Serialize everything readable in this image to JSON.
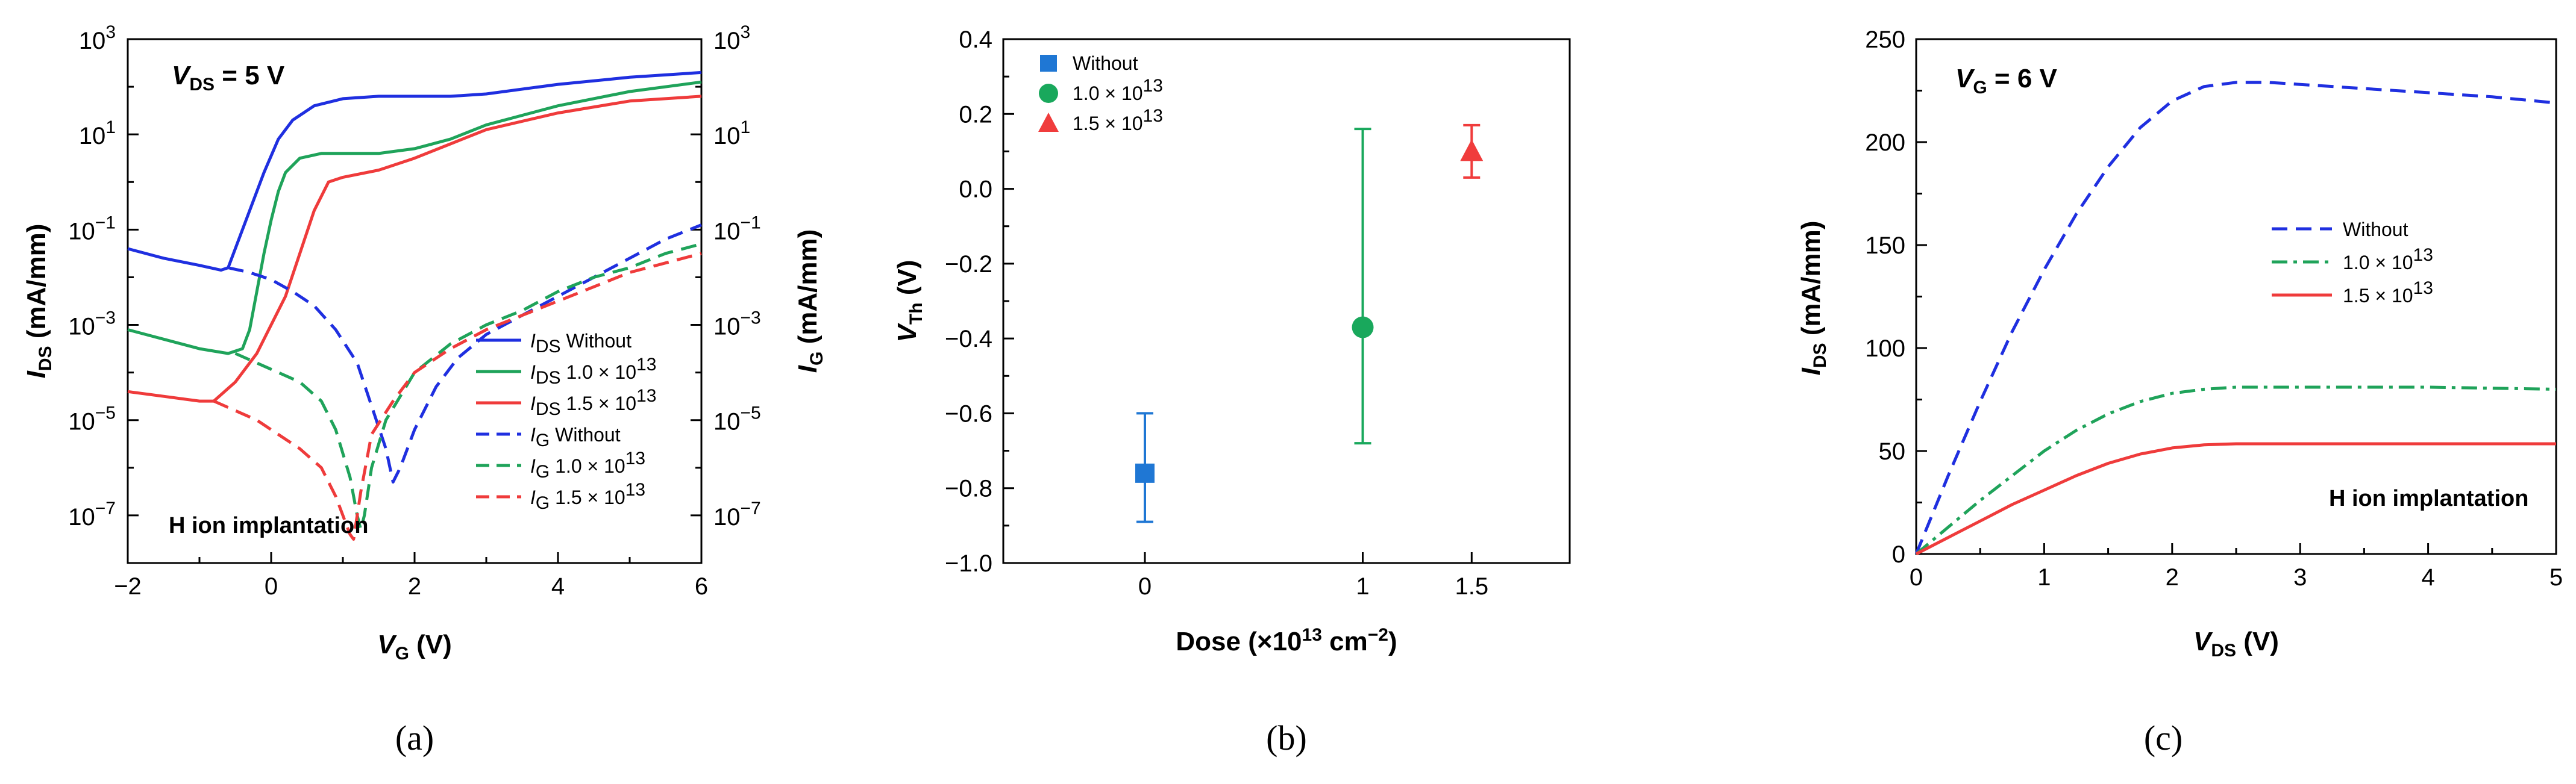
{
  "colors": {
    "blue": "#1f2fe0",
    "green": "#1fa35a",
    "red": "#ef3b3b",
    "scatter_blue": "#1f77d4",
    "scatter_green": "#19a85c",
    "scatter_red": "#f03c3c"
  },
  "chart_data": [
    {
      "id": "a",
      "type": "line",
      "panel_label": "(a)",
      "xlabel_main": "V",
      "xlabel_sub": "G",
      "xlabel_unit": " (V)",
      "ylabel_left_main": "I",
      "ylabel_left_sub": "DS",
      "ylabel_left_unit": " (mA/mm)",
      "ylabel_right_main": "I",
      "ylabel_right_sub": "G",
      "ylabel_right_unit": " (mA/mm)",
      "xlim": [
        -2,
        6
      ],
      "ylim_log10": [
        -8,
        3
      ],
      "x_ticks": [
        -2,
        0,
        2,
        4,
        6
      ],
      "x_tick_labels": [
        "−2",
        "0",
        "2",
        "4",
        "6"
      ],
      "y_ticks_log10": [
        3,
        1,
        -1,
        -3,
        -5,
        -7
      ],
      "y_tick_mantissa": "10",
      "y_tick_exponents": [
        "3",
        "1",
        "−1",
        "−3",
        "−5",
        "−7"
      ],
      "annotation_top_main": "V",
      "annotation_top_sub": "DS",
      "annotation_top_rest": " = 5 V",
      "annotation_bottom": "H ion implantation",
      "legend": [
        {
          "qty": "I",
          "qty_sub": "DS",
          "label": "Without",
          "dose": "",
          "color": "blue",
          "dashed": false
        },
        {
          "qty": "I",
          "qty_sub": "DS",
          "label": "1.0 × 10",
          "dose": "13",
          "color": "green",
          "dashed": false
        },
        {
          "qty": "I",
          "qty_sub": "DS",
          "label": "1.5 × 10",
          "dose": "13",
          "color": "red",
          "dashed": false
        },
        {
          "qty": "I",
          "qty_sub": "G",
          "label": "Without",
          "dose": "",
          "color": "blue",
          "dashed": true
        },
        {
          "qty": "I",
          "qty_sub": "G",
          "label": "1.0 × 10",
          "dose": "13",
          "color": "green",
          "dashed": true
        },
        {
          "qty": "I",
          "qty_sub": "G",
          "label": "1.5 × 10",
          "dose": "13",
          "color": "red",
          "dashed": true
        }
      ],
      "series": [
        {
          "name": "IDS Without",
          "color": "blue",
          "dashed": false,
          "x": [
            -2,
            -1.5,
            -1,
            -0.7,
            -0.6,
            -0.5,
            -0.3,
            -0.1,
            0.1,
            0.3,
            0.6,
            1.0,
            1.5,
            2.0,
            2.5,
            3.0,
            4.0,
            5.0,
            6.0
          ],
          "log10y": [
            -1.4,
            -1.6,
            -1.75,
            -1.85,
            -1.8,
            -1.4,
            -0.6,
            0.2,
            0.9,
            1.3,
            1.6,
            1.75,
            1.8,
            1.8,
            1.8,
            1.85,
            2.05,
            2.2,
            2.3
          ]
        },
        {
          "name": "IDS 1.0x10^13",
          "color": "green",
          "dashed": false,
          "x": [
            -2,
            -1.5,
            -1,
            -0.6,
            -0.4,
            -0.3,
            -0.2,
            -0.1,
            0.0,
            0.1,
            0.2,
            0.4,
            0.7,
            1.0,
            1.5,
            2.0,
            2.5,
            3.0,
            4.0,
            5.0,
            6.0
          ],
          "log10y": [
            -3.1,
            -3.3,
            -3.5,
            -3.6,
            -3.5,
            -3.1,
            -2.3,
            -1.5,
            -0.8,
            -0.2,
            0.2,
            0.5,
            0.6,
            0.6,
            0.6,
            0.7,
            0.9,
            1.2,
            1.6,
            1.9,
            2.1
          ]
        },
        {
          "name": "IDS 1.5x10^13",
          "color": "red",
          "dashed": false,
          "x": [
            -2,
            -1.5,
            -1,
            -0.8,
            -0.5,
            -0.2,
            0.0,
            0.2,
            0.4,
            0.6,
            0.8,
            1.0,
            1.5,
            2.0,
            2.5,
            3.0,
            4.0,
            5.0,
            6.0
          ],
          "log10y": [
            -4.4,
            -4.5,
            -4.6,
            -4.6,
            -4.2,
            -3.6,
            -3.0,
            -2.4,
            -1.5,
            -0.6,
            0.0,
            0.1,
            0.25,
            0.5,
            0.8,
            1.1,
            1.45,
            1.7,
            1.8
          ]
        },
        {
          "name": "IG Without",
          "color": "blue",
          "dashed": true,
          "x": [
            -0.6,
            -0.3,
            0.0,
            0.3,
            0.6,
            0.9,
            1.2,
            1.4,
            1.6,
            1.7,
            1.8,
            2.0,
            2.3,
            2.6,
            3.0,
            3.5,
            4.0,
            4.5,
            5.0,
            5.5,
            6.0
          ],
          "log10y": [
            -1.8,
            -1.9,
            -2.05,
            -2.3,
            -2.6,
            -3.1,
            -3.8,
            -4.7,
            -5.6,
            -6.3,
            -6.0,
            -5.2,
            -4.3,
            -3.7,
            -3.2,
            -2.8,
            -2.4,
            -2.0,
            -1.6,
            -1.2,
            -0.9
          ]
        },
        {
          "name": "IG 1.0x10^13",
          "color": "green",
          "dashed": true,
          "x": [
            -0.5,
            -0.2,
            0.1,
            0.4,
            0.7,
            0.9,
            1.1,
            1.2,
            1.25,
            1.3,
            1.4,
            1.6,
            2.0,
            2.5,
            3.0,
            3.5,
            4.0,
            4.5,
            5.0,
            5.5,
            6.0
          ],
          "log10y": [
            -3.6,
            -3.8,
            -4.0,
            -4.2,
            -4.6,
            -5.2,
            -6.2,
            -7.0,
            -7.3,
            -7.0,
            -6.0,
            -5.0,
            -4.0,
            -3.4,
            -3.0,
            -2.7,
            -2.3,
            -2.0,
            -1.8,
            -1.5,
            -1.3
          ]
        },
        {
          "name": "IG 1.5x10^13",
          "color": "red",
          "dashed": true,
          "x": [
            -0.8,
            -0.5,
            -0.2,
            0.1,
            0.4,
            0.7,
            0.9,
            1.0,
            1.1,
            1.15,
            1.25,
            1.4,
            1.7,
            2.0,
            2.5,
            3.0,
            3.5,
            4.0,
            4.5,
            5.0,
            5.5,
            6.0
          ],
          "log10y": [
            -4.6,
            -4.8,
            -5.0,
            -5.3,
            -5.6,
            -6.0,
            -6.6,
            -7.0,
            -7.4,
            -7.5,
            -6.5,
            -5.3,
            -4.6,
            -4.0,
            -3.5,
            -3.1,
            -2.8,
            -2.5,
            -2.2,
            -1.9,
            -1.7,
            -1.5
          ]
        }
      ]
    },
    {
      "id": "b",
      "type": "scatter",
      "panel_label": "(b)",
      "xlabel": "Dose (×10",
      "xlabel_sup": "13",
      "xlabel_rest": " cm",
      "xlabel_sup2": "−2",
      "xlabel_end": ")",
      "ylabel_main": "V",
      "ylabel_sub": "Th",
      "ylabel_unit": " (V)",
      "xlim": [
        -0.65,
        1.95
      ],
      "ylim": [
        -1.0,
        0.4
      ],
      "x_ticks": [
        0,
        1,
        1.5
      ],
      "x_tick_labels": [
        "0",
        "1",
        "1.5"
      ],
      "y_ticks": [
        0.4,
        0.2,
        0.0,
        -0.2,
        -0.4,
        -0.6,
        -0.8,
        -1.0
      ],
      "y_tick_labels": [
        "0.4",
        "0.2",
        "0.0",
        "−0.2",
        "−0.4",
        "−0.6",
        "−0.8",
        "−1.0"
      ],
      "legend": [
        {
          "label": "Without",
          "sup": "",
          "marker": "square",
          "color": "scatter_blue"
        },
        {
          "label": "1.0 × 10",
          "sup": "13",
          "marker": "circle",
          "color": "scatter_green"
        },
        {
          "label": "1.5 × 10",
          "sup": "13",
          "marker": "triangle",
          "color": "scatter_red"
        }
      ],
      "points": [
        {
          "x": 0,
          "y": -0.76,
          "err_low": -0.89,
          "err_high": -0.6,
          "marker": "square",
          "color": "scatter_blue"
        },
        {
          "x": 1,
          "y": -0.37,
          "err_low": -0.68,
          "err_high": 0.16,
          "marker": "circle",
          "color": "scatter_green"
        },
        {
          "x": 1.5,
          "y": 0.1,
          "err_low": 0.03,
          "err_high": 0.17,
          "marker": "triangle",
          "color": "scatter_red"
        }
      ]
    },
    {
      "id": "c",
      "type": "line",
      "panel_label": "(c)",
      "xlabel_main": "V",
      "xlabel_sub": "DS",
      "xlabel_unit": " (V)",
      "ylabel_main": "I",
      "ylabel_sub": "DS",
      "ylabel_unit": " (mA/mm)",
      "xlim": [
        0,
        5
      ],
      "ylim": [
        0,
        250
      ],
      "x_ticks": [
        0,
        1,
        2,
        3,
        4,
        5
      ],
      "x_tick_labels": [
        "0",
        "1",
        "2",
        "3",
        "4",
        "5"
      ],
      "y_ticks": [
        0,
        50,
        100,
        150,
        200,
        250
      ],
      "y_tick_labels": [
        "0",
        "50",
        "100",
        "150",
        "200",
        "250"
      ],
      "annotation_top_main": "V",
      "annotation_top_sub": "G",
      "annotation_top_rest": " = 6 V",
      "annotation_bottom": "H ion implantation",
      "legend": [
        {
          "label": "Without",
          "sup": "",
          "color": "blue",
          "style": "dash"
        },
        {
          "label": "1.0 × 10",
          "sup": "13",
          "color": "green",
          "style": "dashdot"
        },
        {
          "label": "1.5 × 10",
          "sup": "13",
          "color": "red",
          "style": "solid"
        }
      ],
      "series": [
        {
          "name": "Without",
          "color": "blue",
          "style": "dash",
          "x": [
            0,
            0.25,
            0.5,
            0.75,
            1.0,
            1.25,
            1.5,
            1.75,
            2.0,
            2.25,
            2.5,
            2.75,
            3.0,
            3.5,
            4.0,
            4.5,
            5.0
          ],
          "y": [
            0,
            38,
            74,
            108,
            138,
            165,
            188,
            207,
            220,
            227,
            229,
            229,
            228,
            226,
            224,
            222,
            219
          ]
        },
        {
          "name": "1.0x10^13",
          "color": "green",
          "style": "dashdot",
          "x": [
            0,
            0.25,
            0.5,
            0.75,
            1.0,
            1.25,
            1.5,
            1.75,
            2.0,
            2.25,
            2.5,
            3.0,
            3.5,
            4.0,
            4.5,
            5.0
          ],
          "y": [
            0,
            13,
            26,
            38,
            50,
            60,
            68,
            74,
            78,
            80,
            81,
            81,
            81,
            81,
            80.5,
            80
          ]
        },
        {
          "name": "1.5x10^13",
          "color": "red",
          "style": "solid",
          "x": [
            0,
            0.25,
            0.5,
            0.75,
            1.0,
            1.25,
            1.5,
            1.75,
            2.0,
            2.25,
            2.5,
            3.0,
            3.5,
            4.0,
            4.5,
            5.0
          ],
          "y": [
            0,
            8,
            16,
            24,
            31,
            38,
            44,
            48.5,
            51.5,
            53,
            53.5,
            53.5,
            53.5,
            53.5,
            53.5,
            53.5
          ]
        }
      ]
    }
  ]
}
